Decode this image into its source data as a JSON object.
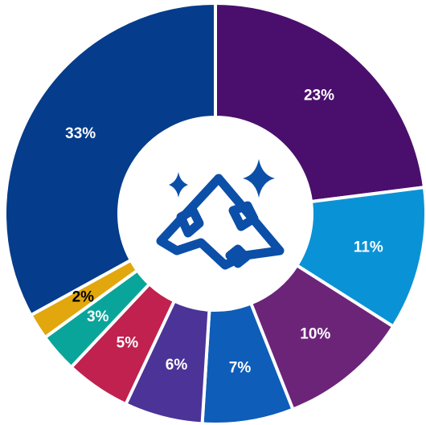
{
  "chart_data": {
    "type": "donut",
    "categories": [
      null,
      null,
      null,
      null,
      null,
      null,
      null,
      null,
      null
    ],
    "values": [
      23,
      11,
      10,
      7,
      6,
      5,
      3,
      2,
      33
    ],
    "value_labels": [
      "23%",
      "11%",
      "10%",
      "7%",
      "6%",
      "5%",
      "3%",
      "2%",
      "33%"
    ],
    "colors": [
      "#4a0f6c",
      "#0a92d6",
      "#6c2479",
      "#0e5db8",
      "#4c3397",
      "#c0214f",
      "#0aa59a",
      "#e2a70d",
      "#053c8b"
    ],
    "label_colors": [
      "#ffffff",
      "#ffffff",
      "#ffffff",
      "#ffffff",
      "#ffffff",
      "#ffffff",
      "#ffffff",
      "#000000",
      "#ffffff"
    ]
  }
}
